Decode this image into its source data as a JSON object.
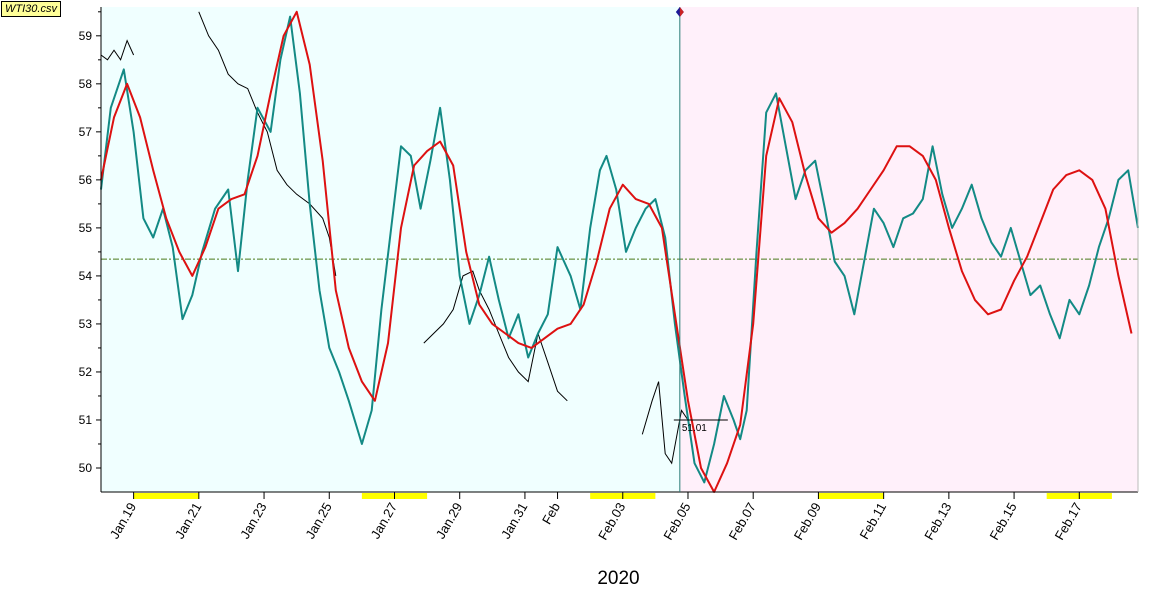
{
  "file_label": "WTI30.csv",
  "year_label": "2020",
  "colors": {
    "past_bg": "#f0ffff",
    "future_bg": "#fff0fa",
    "price": "#000000",
    "teal": "#138a85",
    "red": "#dd1111",
    "hline": "#4a7a1a",
    "highlight": "#ffff00",
    "vline": "#2a7a76",
    "year": "#1a1acc"
  },
  "chart_data": {
    "type": "line",
    "title": "",
    "xlabel": "2020",
    "ylabel": "",
    "x_unit": "days since Jan 18",
    "xlim": [
      0,
      31.8
    ],
    "ylim": [
      49.5,
      59.6
    ],
    "y_ticks": [
      50,
      51,
      52,
      53,
      54,
      55,
      56,
      57,
      58,
      59
    ],
    "x_ticks": [
      {
        "x": 1,
        "label": "Jan.19"
      },
      {
        "x": 3,
        "label": "Jan.21"
      },
      {
        "x": 5,
        "label": "Jan.23"
      },
      {
        "x": 7,
        "label": "Jan.25"
      },
      {
        "x": 9,
        "label": "Jan.27"
      },
      {
        "x": 11,
        "label": "Jan.29"
      },
      {
        "x": 13,
        "label": "Jan.31"
      },
      {
        "x": 14,
        "label": "Feb"
      },
      {
        "x": 16,
        "label": "Feb.03"
      },
      {
        "x": 18,
        "label": "Feb.05"
      },
      {
        "x": 20,
        "label": "Feb.07"
      },
      {
        "x": 22,
        "label": "Feb.09"
      },
      {
        "x": 24,
        "label": "Feb.11"
      },
      {
        "x": 26,
        "label": "Feb.13"
      },
      {
        "x": 28,
        "label": "Feb.15"
      },
      {
        "x": 30,
        "label": "Feb.17"
      }
    ],
    "split_x": 17.75,
    "hline_y": 54.35,
    "last_price_label": "51.01",
    "last_price": 51.0,
    "weekend_bands": [
      [
        1,
        3
      ],
      [
        8,
        10
      ],
      [
        15,
        17
      ],
      [
        22,
        24
      ],
      [
        29,
        31
      ]
    ],
    "series": [
      {
        "key": "price",
        "segments": [
          [
            [
              0.0,
              58.6
            ],
            [
              0.2,
              58.5
            ],
            [
              0.4,
              58.7
            ],
            [
              0.6,
              58.5
            ],
            [
              0.8,
              58.9
            ],
            [
              1.0,
              58.6
            ]
          ],
          [
            [
              3.0,
              59.5
            ],
            [
              3.3,
              59.0
            ],
            [
              3.6,
              58.7
            ],
            [
              3.9,
              58.2
            ],
            [
              4.2,
              58.0
            ],
            [
              4.5,
              57.9
            ],
            [
              4.8,
              57.4
            ],
            [
              5.1,
              57.0
            ],
            [
              5.4,
              56.2
            ],
            [
              5.7,
              55.9
            ],
            [
              6.0,
              55.7
            ],
            [
              6.4,
              55.5
            ],
            [
              6.8,
              55.2
            ],
            [
              7.0,
              54.8
            ],
            [
              7.2,
              54.0
            ]
          ],
          [
            [
              9.9,
              52.6
            ],
            [
              10.2,
              52.8
            ],
            [
              10.5,
              53.0
            ],
            [
              10.8,
              53.3
            ],
            [
              11.1,
              54.0
            ],
            [
              11.4,
              54.1
            ],
            [
              11.6,
              53.7
            ],
            [
              11.9,
              53.3
            ],
            [
              12.2,
              52.8
            ],
            [
              12.5,
              52.3
            ],
            [
              12.8,
              52.0
            ],
            [
              13.1,
              51.8
            ],
            [
              13.4,
              52.8
            ],
            [
              13.7,
              52.2
            ],
            [
              14.0,
              51.6
            ],
            [
              14.3,
              51.4
            ]
          ],
          [
            [
              16.6,
              50.7
            ],
            [
              16.9,
              51.4
            ],
            [
              17.1,
              51.8
            ],
            [
              17.3,
              50.3
            ],
            [
              17.5,
              50.1
            ],
            [
              17.8,
              51.2
            ],
            [
              18.0,
              51.0
            ]
          ]
        ]
      },
      {
        "key": "teal",
        "values": [
          [
            0.0,
            55.8
          ],
          [
            0.3,
            57.5
          ],
          [
            0.7,
            58.3
          ],
          [
            1.0,
            57.0
          ],
          [
            1.3,
            55.2
          ],
          [
            1.6,
            54.8
          ],
          [
            1.9,
            55.4
          ],
          [
            2.2,
            54.6
          ],
          [
            2.5,
            53.1
          ],
          [
            2.8,
            53.6
          ],
          [
            3.1,
            54.5
          ],
          [
            3.5,
            55.4
          ],
          [
            3.9,
            55.8
          ],
          [
            4.2,
            54.1
          ],
          [
            4.5,
            56.0
          ],
          [
            4.8,
            57.5
          ],
          [
            5.2,
            57.0
          ],
          [
            5.5,
            58.5
          ],
          [
            5.8,
            59.4
          ],
          [
            6.1,
            57.8
          ],
          [
            6.4,
            55.5
          ],
          [
            6.7,
            53.7
          ],
          [
            7.0,
            52.5
          ],
          [
            7.3,
            52.0
          ],
          [
            7.6,
            51.4
          ],
          [
            8.0,
            50.5
          ],
          [
            8.3,
            51.2
          ],
          [
            8.6,
            53.3
          ],
          [
            8.9,
            55.0
          ],
          [
            9.2,
            56.7
          ],
          [
            9.5,
            56.5
          ],
          [
            9.8,
            55.4
          ],
          [
            10.1,
            56.4
          ],
          [
            10.4,
            57.5
          ],
          [
            10.7,
            56.0
          ],
          [
            11.0,
            54.0
          ],
          [
            11.3,
            53.0
          ],
          [
            11.6,
            53.6
          ],
          [
            11.9,
            54.4
          ],
          [
            12.2,
            53.5
          ],
          [
            12.5,
            52.7
          ],
          [
            12.8,
            53.2
          ],
          [
            13.1,
            52.3
          ],
          [
            13.4,
            52.8
          ],
          [
            13.7,
            53.2
          ],
          [
            14.0,
            54.6
          ],
          [
            14.4,
            54.0
          ],
          [
            14.7,
            53.3
          ],
          [
            15.0,
            55.0
          ],
          [
            15.3,
            56.2
          ],
          [
            15.5,
            56.5
          ],
          [
            15.8,
            55.8
          ],
          [
            16.1,
            54.5
          ],
          [
            16.4,
            55.0
          ],
          [
            16.7,
            55.4
          ],
          [
            17.0,
            55.6
          ],
          [
            17.3,
            54.8
          ],
          [
            17.6,
            53.0
          ],
          [
            17.9,
            51.5
          ],
          [
            18.2,
            50.1
          ],
          [
            18.5,
            49.7
          ],
          [
            18.8,
            50.5
          ],
          [
            19.1,
            51.5
          ],
          [
            19.4,
            51.0
          ],
          [
            19.6,
            50.6
          ],
          [
            19.8,
            51.2
          ],
          [
            20.1,
            54.5
          ],
          [
            20.4,
            57.4
          ],
          [
            20.7,
            57.8
          ],
          [
            21.0,
            56.7
          ],
          [
            21.3,
            55.6
          ],
          [
            21.6,
            56.2
          ],
          [
            21.9,
            56.4
          ],
          [
            22.2,
            55.4
          ],
          [
            22.5,
            54.3
          ],
          [
            22.8,
            54.0
          ],
          [
            23.1,
            53.2
          ],
          [
            23.4,
            54.3
          ],
          [
            23.7,
            55.4
          ],
          [
            24.0,
            55.1
          ],
          [
            24.3,
            54.6
          ],
          [
            24.6,
            55.2
          ],
          [
            24.9,
            55.3
          ],
          [
            25.2,
            55.6
          ],
          [
            25.5,
            56.7
          ],
          [
            25.8,
            55.7
          ],
          [
            26.1,
            55.0
          ],
          [
            26.4,
            55.4
          ],
          [
            26.7,
            55.9
          ],
          [
            27.0,
            55.2
          ],
          [
            27.3,
            54.7
          ],
          [
            27.6,
            54.4
          ],
          [
            27.9,
            55.0
          ],
          [
            28.2,
            54.3
          ],
          [
            28.5,
            53.6
          ],
          [
            28.8,
            53.8
          ],
          [
            29.1,
            53.2
          ],
          [
            29.4,
            52.7
          ],
          [
            29.7,
            53.5
          ],
          [
            30.0,
            53.2
          ],
          [
            30.3,
            53.8
          ],
          [
            30.6,
            54.6
          ],
          [
            30.9,
            55.2
          ],
          [
            31.2,
            56.0
          ],
          [
            31.5,
            56.2
          ],
          [
            31.8,
            55.0
          ]
        ]
      },
      {
        "key": "red",
        "values": [
          [
            0.0,
            56.0
          ],
          [
            0.4,
            57.3
          ],
          [
            0.8,
            58.0
          ],
          [
            1.2,
            57.3
          ],
          [
            1.6,
            56.2
          ],
          [
            2.0,
            55.2
          ],
          [
            2.4,
            54.5
          ],
          [
            2.8,
            54.0
          ],
          [
            3.2,
            54.6
          ],
          [
            3.6,
            55.4
          ],
          [
            4.0,
            55.6
          ],
          [
            4.4,
            55.7
          ],
          [
            4.8,
            56.5
          ],
          [
            5.2,
            57.8
          ],
          [
            5.6,
            59.0
          ],
          [
            6.0,
            59.5
          ],
          [
            6.4,
            58.4
          ],
          [
            6.8,
            56.4
          ],
          [
            7.2,
            53.7
          ],
          [
            7.6,
            52.5
          ],
          [
            8.0,
            51.8
          ],
          [
            8.4,
            51.4
          ],
          [
            8.8,
            52.6
          ],
          [
            9.2,
            55.0
          ],
          [
            9.6,
            56.3
          ],
          [
            10.0,
            56.6
          ],
          [
            10.4,
            56.8
          ],
          [
            10.8,
            56.3
          ],
          [
            11.2,
            54.5
          ],
          [
            11.6,
            53.4
          ],
          [
            12.0,
            53.0
          ],
          [
            12.4,
            52.8
          ],
          [
            12.8,
            52.6
          ],
          [
            13.2,
            52.5
          ],
          [
            13.6,
            52.7
          ],
          [
            14.0,
            52.9
          ],
          [
            14.4,
            53.0
          ],
          [
            14.8,
            53.4
          ],
          [
            15.2,
            54.3
          ],
          [
            15.6,
            55.4
          ],
          [
            16.0,
            55.9
          ],
          [
            16.4,
            55.6
          ],
          [
            16.8,
            55.5
          ],
          [
            17.2,
            55.0
          ],
          [
            17.6,
            53.2
          ],
          [
            18.0,
            51.4
          ],
          [
            18.4,
            50.0
          ],
          [
            18.8,
            49.5
          ],
          [
            19.2,
            50.1
          ],
          [
            19.6,
            50.9
          ],
          [
            20.0,
            53.0
          ],
          [
            20.4,
            56.5
          ],
          [
            20.8,
            57.7
          ],
          [
            21.2,
            57.2
          ],
          [
            21.6,
            56.1
          ],
          [
            22.0,
            55.2
          ],
          [
            22.4,
            54.9
          ],
          [
            22.8,
            55.1
          ],
          [
            23.2,
            55.4
          ],
          [
            23.6,
            55.8
          ],
          [
            24.0,
            56.2
          ],
          [
            24.4,
            56.7
          ],
          [
            24.8,
            56.7
          ],
          [
            25.2,
            56.5
          ],
          [
            25.6,
            56.0
          ],
          [
            26.0,
            55.0
          ],
          [
            26.4,
            54.1
          ],
          [
            26.8,
            53.5
          ],
          [
            27.2,
            53.2
          ],
          [
            27.6,
            53.3
          ],
          [
            28.0,
            53.9
          ],
          [
            28.4,
            54.4
          ],
          [
            28.8,
            55.1
          ],
          [
            29.2,
            55.8
          ],
          [
            29.6,
            56.1
          ],
          [
            30.0,
            56.2
          ],
          [
            30.4,
            56.0
          ],
          [
            30.8,
            55.4
          ],
          [
            31.2,
            54.0
          ],
          [
            31.6,
            52.8
          ]
        ]
      }
    ]
  }
}
